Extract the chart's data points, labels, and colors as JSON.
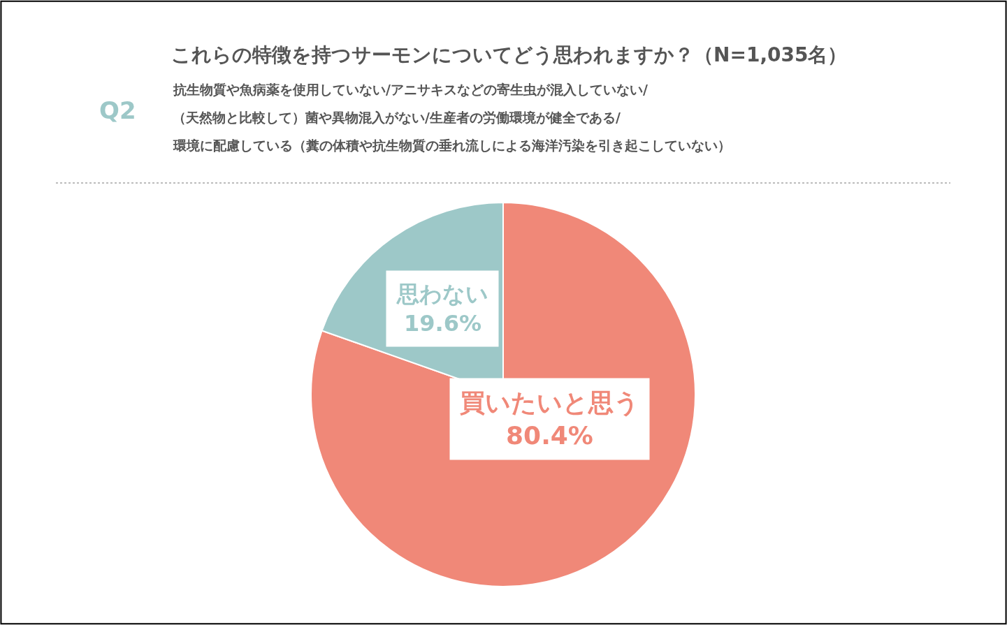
{
  "chart_data": {
    "type": "pie",
    "title": "これらの特徴を持つサーモンについてどう思われますか？（N=1,035名）",
    "subtitle": "抗生物質や魚病薬を使用していない/アニサキスなどの寄生虫が混入していない/\n（天然物と比較して）菌や異物混入がない/生産者の労働環境が健全である/\n環境に配慮している（糞の体積や抗生物質の垂れ流しによる海洋汚染を引き起こしていない）",
    "annotations": [
      "Q2"
    ],
    "categories": [
      "買いたいと思う",
      "思わない"
    ],
    "values": [
      80.4,
      19.6
    ],
    "value_labels": [
      "80.4%",
      "19.6%"
    ],
    "colors": [
      "#f08878",
      "#9dc8c8"
    ],
    "legend": false
  }
}
